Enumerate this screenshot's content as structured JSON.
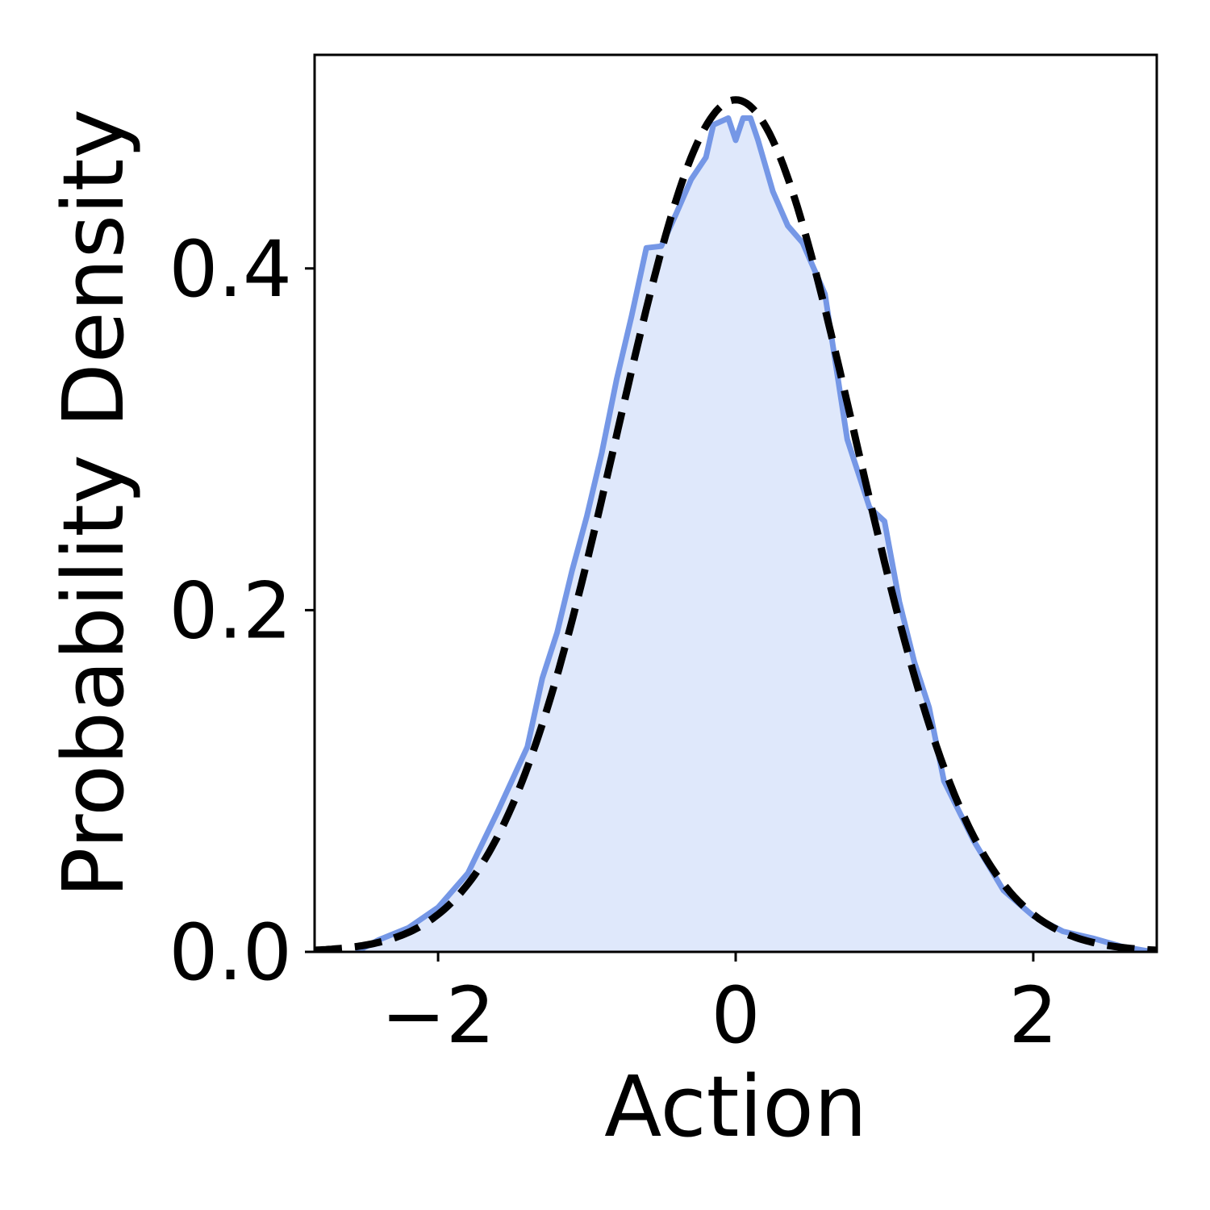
{
  "chart_data": {
    "type": "area",
    "title": "",
    "xlabel": "Action",
    "ylabel": "Probability Density",
    "xlim": [
      -2.83,
      2.83
    ],
    "ylim": [
      0.0,
      0.525
    ],
    "xticks": [
      -2,
      0,
      2
    ],
    "xtick_labels": [
      "−2",
      "0",
      "2"
    ],
    "yticks": [
      0.0,
      0.2,
      0.4
    ],
    "ytick_labels": [
      "0.0",
      "0.2",
      "0.4"
    ],
    "grid": false,
    "legend": "none",
    "colors": {
      "empirical_line": "#7597e6",
      "empirical_fill": "#dfe8fb",
      "reference_line": "#000000"
    },
    "series": [
      {
        "style": "solid-filled",
        "x": [
          -2.55,
          -2.4,
          -2.2,
          -2.0,
          -1.8,
          -1.6,
          -1.4,
          -1.3,
          -1.2,
          -1.1,
          -1.0,
          -0.9,
          -0.8,
          -0.7,
          -0.6,
          -0.5,
          -0.4,
          -0.3,
          -0.2,
          -0.15,
          -0.05,
          0.0,
          0.05,
          0.1,
          0.15,
          0.25,
          0.35,
          0.45,
          0.6,
          0.75,
          0.9,
          1.0,
          1.1,
          1.2,
          1.3,
          1.4,
          1.6,
          1.8,
          2.0,
          2.2,
          2.4,
          2.6,
          2.8
        ],
        "y": [
          0.0,
          0.007,
          0.014,
          0.026,
          0.046,
          0.082,
          0.12,
          0.16,
          0.187,
          0.223,
          0.255,
          0.292,
          0.335,
          0.372,
          0.412,
          0.413,
          0.432,
          0.452,
          0.465,
          0.484,
          0.488,
          0.475,
          0.488,
          0.488,
          0.475,
          0.445,
          0.425,
          0.415,
          0.385,
          0.3,
          0.26,
          0.252,
          0.205,
          0.17,
          0.143,
          0.1,
          0.065,
          0.036,
          0.021,
          0.012,
          0.008,
          0.003,
          0.0
        ]
      },
      {
        "style": "dashed",
        "distribution": "normal",
        "mean": 0.0,
        "std": 0.8
      }
    ]
  }
}
